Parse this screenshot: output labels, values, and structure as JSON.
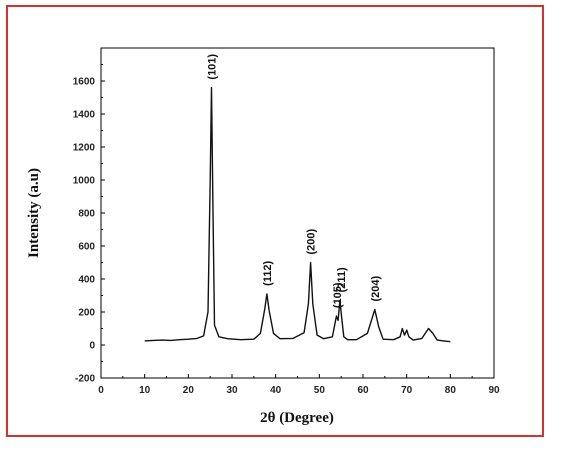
{
  "chart_data": {
    "type": "line",
    "xlabel": "2θ (Degree)",
    "ylabel": "Intensity (a.u)",
    "xlim": [
      0,
      90
    ],
    "ylim": [
      -200,
      1800
    ],
    "x_ticks": [
      0,
      10,
      20,
      30,
      40,
      50,
      60,
      70,
      80,
      90
    ],
    "y_ticks": [
      -200,
      0,
      200,
      400,
      600,
      800,
      1000,
      1200,
      1400,
      1600
    ],
    "grid": false,
    "series": [
      {
        "color": "#111111",
        "x": [
          10,
          12,
          14,
          16,
          18,
          20,
          22,
          23.5,
          24.5,
          25,
          25.3,
          25.6,
          26,
          27,
          29,
          32,
          35,
          36.5,
          37.5,
          38,
          38.5,
          39.5,
          41,
          44,
          46.5,
          47.5,
          48,
          48.5,
          49.5,
          51,
          53,
          53.9,
          54.3,
          54.7,
          55.1,
          55.6,
          56.5,
          58.5,
          61,
          62.7,
          63.6,
          64.6,
          67,
          68.5,
          69,
          69.5,
          70,
          70.5,
          71.5,
          73.5,
          75,
          76,
          77,
          78.5,
          80
        ],
        "values": [
          25,
          28,
          30,
          28,
          32,
          35,
          40,
          55,
          200,
          1000,
          1560,
          900,
          120,
          50,
          38,
          32,
          35,
          70,
          220,
          310,
          210,
          70,
          38,
          40,
          75,
          250,
          500,
          250,
          60,
          38,
          50,
          175,
          150,
          270,
          170,
          50,
          32,
          32,
          70,
          215,
          110,
          35,
          32,
          50,
          100,
          60,
          90,
          50,
          30,
          40,
          100,
          70,
          30,
          25,
          20
        ]
      }
    ],
    "annotations": [
      {
        "text": "(101)",
        "x": 25.3,
        "y": 1560
      },
      {
        "text": "(112)",
        "x": 38,
        "y": 310
      },
      {
        "text": "(200)",
        "x": 48,
        "y": 500
      },
      {
        "text": "(105)",
        "x": 54,
        "y": 175
      },
      {
        "text": "(211)",
        "x": 55,
        "y": 270
      },
      {
        "text": "(204)",
        "x": 62.7,
        "y": 215
      }
    ]
  }
}
